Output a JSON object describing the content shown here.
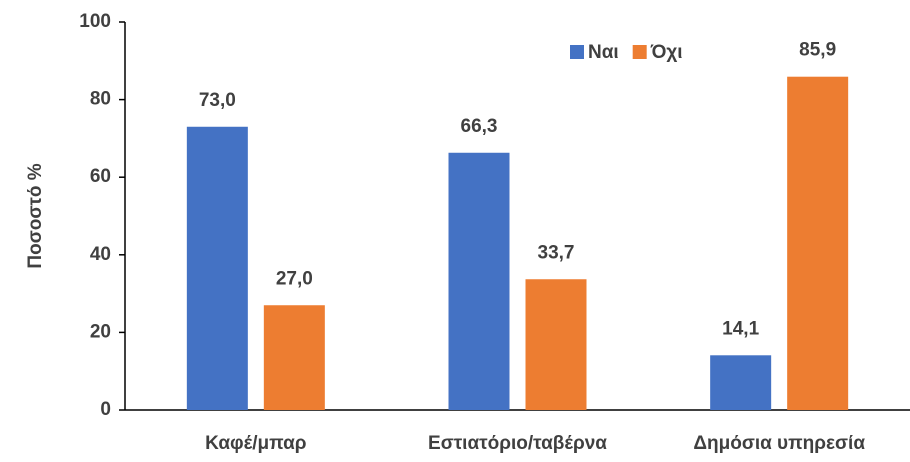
{
  "chart_data": {
    "type": "bar",
    "y_label": "Ποσοστό %",
    "categories": [
      "Καφέ/μπαρ",
      "Εστιατόριο/ταβέρνα",
      "Δημόσια υπηρεσία"
    ],
    "series": [
      {
        "name": "Ναι",
        "color": "#4472c4",
        "values": [
          73.0,
          66.3,
          14.1
        ],
        "value_labels": [
          "73,0",
          "66,3",
          "14,1"
        ]
      },
      {
        "name": "Όχι",
        "color": "#ed7d31",
        "values": [
          27.0,
          33.7,
          85.9
        ],
        "value_labels": [
          "27,0",
          "33,7",
          "85,9"
        ]
      }
    ],
    "ylim": [
      0,
      100
    ],
    "yticks": [
      0,
      20,
      40,
      60,
      80,
      100
    ],
    "grid": false,
    "legend": "top-right"
  }
}
